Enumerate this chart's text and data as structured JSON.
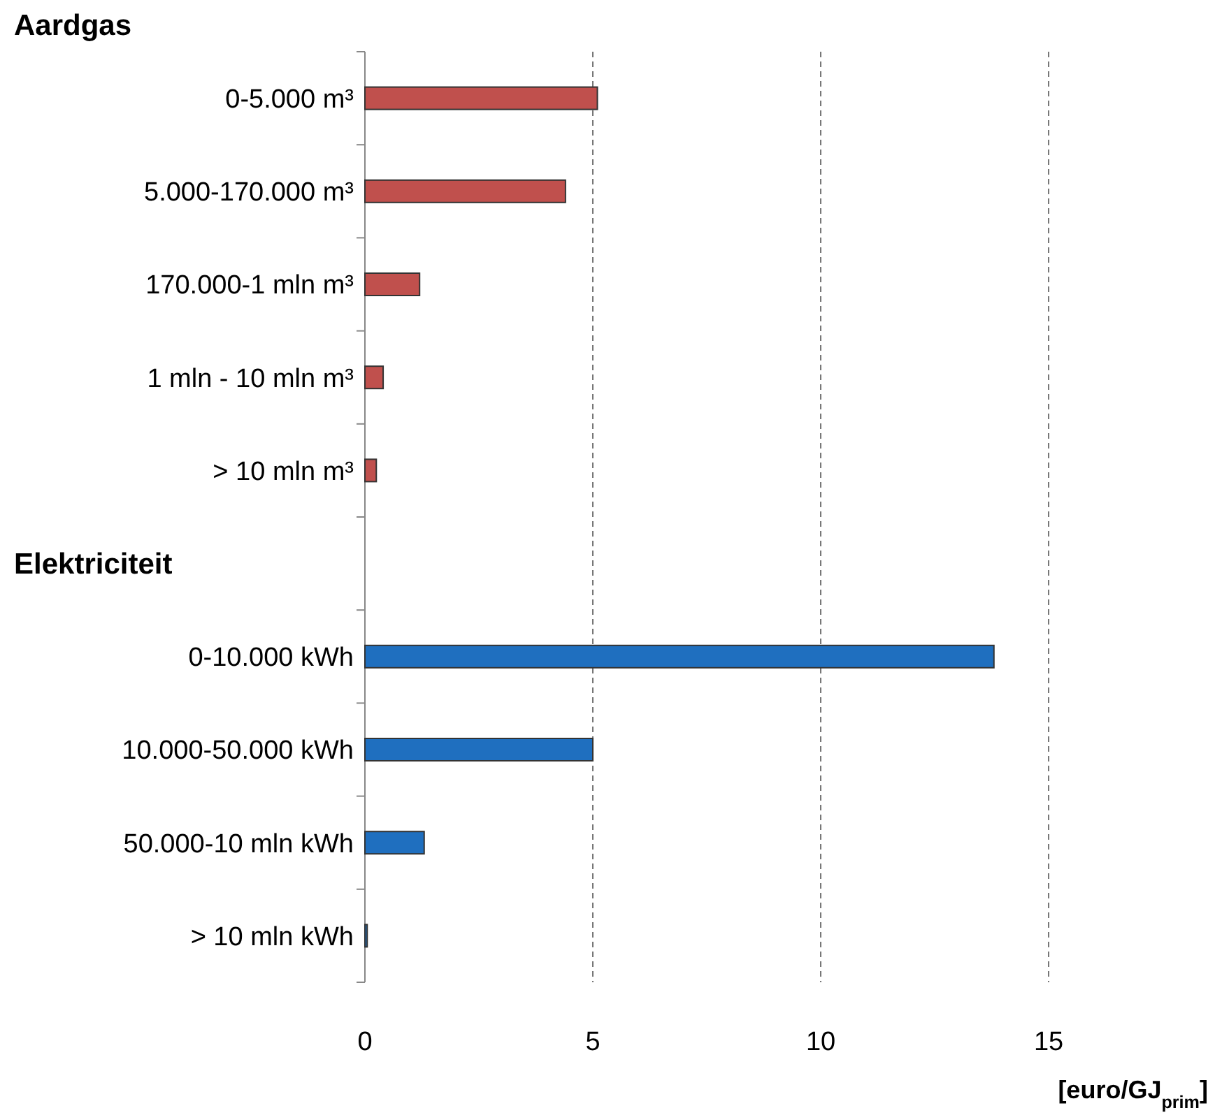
{
  "chart_data": {
    "type": "bar",
    "orientation": "horizontal",
    "title": "Aardgas",
    "xlabel": "[euro/GJ$_{prim}$]",
    "categories": [
      "0-5.000 m³",
      "5.000-170.000 m³",
      "170.000-1 mln m³",
      "1 mln - 10 mln m³",
      "> 10 mln m³",
      null,
      "0-10.000 kWh",
      "10.000-50.000 kWh",
      "50.000-10 mln kWh",
      "> 10 mln kWh"
    ],
    "values": [
      5.1,
      4.4,
      1.2,
      0.4,
      0.25,
      null,
      13.8,
      5.0,
      1.3,
      0.05
    ],
    "colors": [
      "#c0504d",
      "#c0504d",
      "#c0504d",
      "#c0504d",
      "#c0504d",
      null,
      "#1f6fbf",
      "#1f6fbf",
      "#1f6fbf",
      "#1f6fbf"
    ],
    "xlim": [
      0,
      15
    ],
    "xticks": [
      0,
      5,
      10,
      15
    ],
    "grid": "x",
    "annotations": [
      "Elektriciteit"
    ]
  }
}
